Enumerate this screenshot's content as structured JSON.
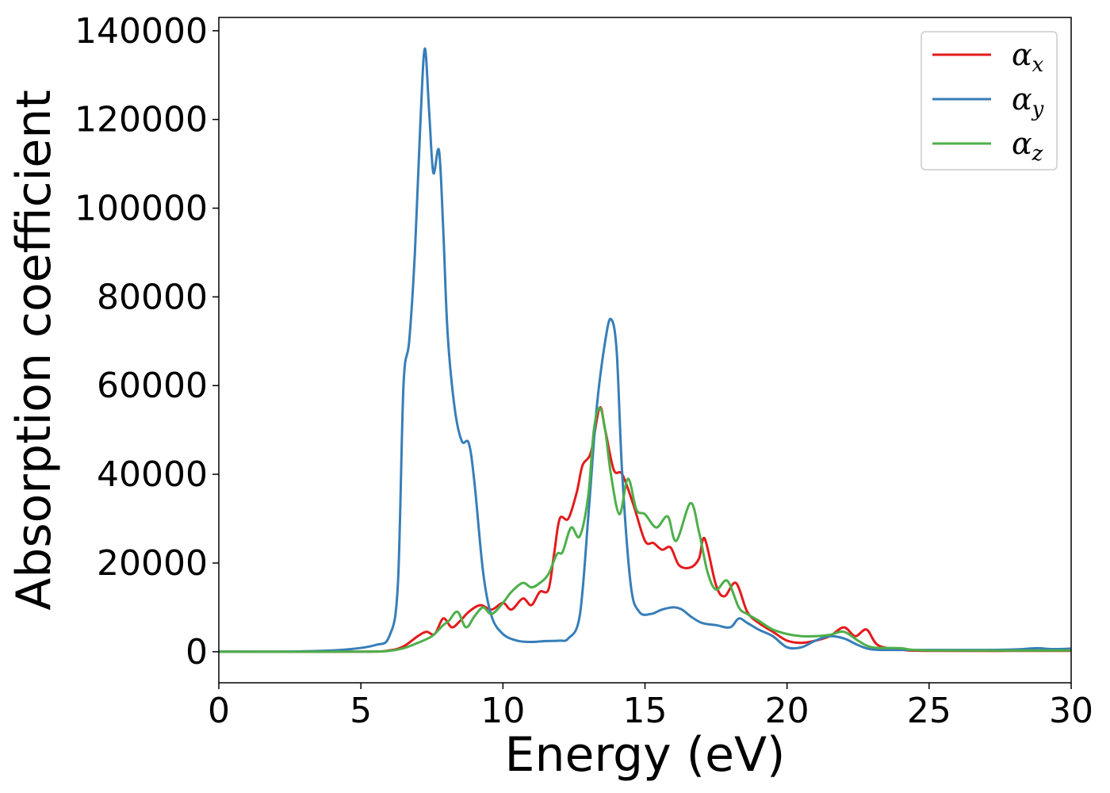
{
  "chart_data": {
    "type": "line",
    "title": "",
    "xlabel": "Energy (eV)",
    "ylabel": "Absorption coefficient",
    "xlim": [
      0,
      30
    ],
    "ylim": [
      -7000,
      143000
    ],
    "xticks": [
      0,
      5,
      10,
      15,
      20,
      25,
      30
    ],
    "xtick_labels": [
      "0",
      "5",
      "10",
      "15",
      "20",
      "25",
      "30"
    ],
    "yticks": [
      0,
      20000,
      40000,
      60000,
      80000,
      100000,
      120000,
      140000
    ],
    "ytick_labels": [
      "0",
      "20000",
      "40000",
      "60000",
      "80000",
      "100000",
      "120000",
      "140000"
    ],
    "grid": false,
    "legend_position": "top-right",
    "series": [
      {
        "name": "α",
        "subscript": "x",
        "color": "#e41a1c",
        "points": [
          [
            0,
            0
          ],
          [
            5,
            0
          ],
          [
            6,
            300
          ],
          [
            6.5,
            1200
          ],
          [
            7,
            3500
          ],
          [
            7.3,
            4500
          ],
          [
            7.6,
            4000
          ],
          [
            7.9,
            7500
          ],
          [
            8.2,
            5500
          ],
          [
            8.5,
            7000
          ],
          [
            8.8,
            9000
          ],
          [
            9.2,
            10500
          ],
          [
            9.6,
            9500
          ],
          [
            10,
            11000
          ],
          [
            10.3,
            9500
          ],
          [
            10.7,
            12000
          ],
          [
            11,
            10500
          ],
          [
            11.3,
            13500
          ],
          [
            11.6,
            14000
          ],
          [
            11.8,
            22000
          ],
          [
            12,
            30000
          ],
          [
            12.3,
            30000
          ],
          [
            12.6,
            36000
          ],
          [
            12.8,
            42000
          ],
          [
            13.1,
            45000
          ],
          [
            13.4,
            55000
          ],
          [
            13.6,
            50000
          ],
          [
            13.9,
            41000
          ],
          [
            14.2,
            40000
          ],
          [
            14.6,
            33000
          ],
          [
            15,
            25000
          ],
          [
            15.3,
            24500
          ],
          [
            15.6,
            23000
          ],
          [
            15.9,
            23500
          ],
          [
            16.2,
            19500
          ],
          [
            16.6,
            19000
          ],
          [
            16.9,
            21000
          ],
          [
            17.1,
            25500
          ],
          [
            17.5,
            15000
          ],
          [
            17.8,
            12500
          ],
          [
            18.2,
            15500
          ],
          [
            18.6,
            9000
          ],
          [
            19,
            6500
          ],
          [
            19.5,
            4500
          ],
          [
            20,
            2500
          ],
          [
            20.5,
            2000
          ],
          [
            21,
            2500
          ],
          [
            21.5,
            3500
          ],
          [
            22,
            5500
          ],
          [
            22.4,
            3500
          ],
          [
            22.8,
            5000
          ],
          [
            23.2,
            1500
          ],
          [
            24,
            500
          ],
          [
            25,
            200
          ],
          [
            30,
            200
          ]
        ]
      },
      {
        "name": "α",
        "subscript": "y",
        "color": "#377eb8",
        "points": [
          [
            0,
            0
          ],
          [
            3,
            100
          ],
          [
            4.5,
            500
          ],
          [
            5.5,
            1500
          ],
          [
            6,
            3500
          ],
          [
            6.3,
            15000
          ],
          [
            6.5,
            60000
          ],
          [
            6.7,
            70000
          ],
          [
            6.9,
            90000
          ],
          [
            7.1,
            120000
          ],
          [
            7.25,
            136000
          ],
          [
            7.4,
            122000
          ],
          [
            7.55,
            108000
          ],
          [
            7.75,
            113000
          ],
          [
            7.9,
            95000
          ],
          [
            8.05,
            72000
          ],
          [
            8.3,
            55000
          ],
          [
            8.55,
            47500
          ],
          [
            8.8,
            47000
          ],
          [
            9,
            38000
          ],
          [
            9.3,
            18000
          ],
          [
            9.6,
            8000
          ],
          [
            10,
            4000
          ],
          [
            10.5,
            2500
          ],
          [
            11,
            2200
          ],
          [
            11.5,
            2400
          ],
          [
            12,
            2500
          ],
          [
            12.3,
            3000
          ],
          [
            12.7,
            8000
          ],
          [
            13,
            30000
          ],
          [
            13.3,
            55000
          ],
          [
            13.6,
            70000
          ],
          [
            13.8,
            75000
          ],
          [
            14,
            68000
          ],
          [
            14.2,
            40000
          ],
          [
            14.5,
            15000
          ],
          [
            14.8,
            9000
          ],
          [
            15.2,
            8500
          ],
          [
            15.6,
            9500
          ],
          [
            16,
            10000
          ],
          [
            16.3,
            9500
          ],
          [
            16.6,
            8000
          ],
          [
            17,
            6500
          ],
          [
            17.5,
            6000
          ],
          [
            18,
            5500
          ],
          [
            18.3,
            7500
          ],
          [
            18.6,
            6500
          ],
          [
            19,
            5000
          ],
          [
            19.5,
            3500
          ],
          [
            20,
            1000
          ],
          [
            20.5,
            1000
          ],
          [
            21,
            2500
          ],
          [
            21.5,
            3500
          ],
          [
            22,
            3000
          ],
          [
            22.5,
            1500
          ],
          [
            23,
            500
          ],
          [
            24,
            400
          ],
          [
            25,
            400
          ],
          [
            27,
            400
          ],
          [
            28,
            500
          ],
          [
            28.8,
            800
          ],
          [
            29.3,
            600
          ],
          [
            30,
            700
          ]
        ]
      },
      {
        "name": "α",
        "subscript": "z",
        "color": "#4daf4a",
        "points": [
          [
            0,
            0
          ],
          [
            5,
            0
          ],
          [
            6,
            200
          ],
          [
            6.5,
            800
          ],
          [
            7,
            2000
          ],
          [
            7.5,
            3500
          ],
          [
            7.9,
            6000
          ],
          [
            8.1,
            7000
          ],
          [
            8.4,
            9000
          ],
          [
            8.7,
            5500
          ],
          [
            9,
            8000
          ],
          [
            9.3,
            10000
          ],
          [
            9.6,
            8500
          ],
          [
            10,
            11000
          ],
          [
            10.3,
            13500
          ],
          [
            10.7,
            15500
          ],
          [
            11,
            14500
          ],
          [
            11.3,
            15500
          ],
          [
            11.6,
            17500
          ],
          [
            11.9,
            22000
          ],
          [
            12.1,
            22500
          ],
          [
            12.4,
            28000
          ],
          [
            12.7,
            26000
          ],
          [
            13,
            35000
          ],
          [
            13.2,
            50000
          ],
          [
            13.4,
            55000
          ],
          [
            13.6,
            50000
          ],
          [
            13.8,
            40000
          ],
          [
            14.1,
            31000
          ],
          [
            14.4,
            39000
          ],
          [
            14.7,
            32000
          ],
          [
            15,
            31000
          ],
          [
            15.4,
            28000
          ],
          [
            15.8,
            30500
          ],
          [
            16.1,
            25000
          ],
          [
            16.6,
            33500
          ],
          [
            16.9,
            27000
          ],
          [
            17.2,
            18000
          ],
          [
            17.5,
            14000
          ],
          [
            17.9,
            16000
          ],
          [
            18.3,
            10000
          ],
          [
            18.6,
            8500
          ],
          [
            19,
            7000
          ],
          [
            19.5,
            5000
          ],
          [
            20,
            4000
          ],
          [
            20.5,
            3500
          ],
          [
            21,
            3500
          ],
          [
            21.5,
            3800
          ],
          [
            22,
            4500
          ],
          [
            22.5,
            2500
          ],
          [
            23,
            1000
          ],
          [
            24,
            800
          ],
          [
            25,
            300
          ],
          [
            30,
            300
          ]
        ]
      }
    ]
  }
}
